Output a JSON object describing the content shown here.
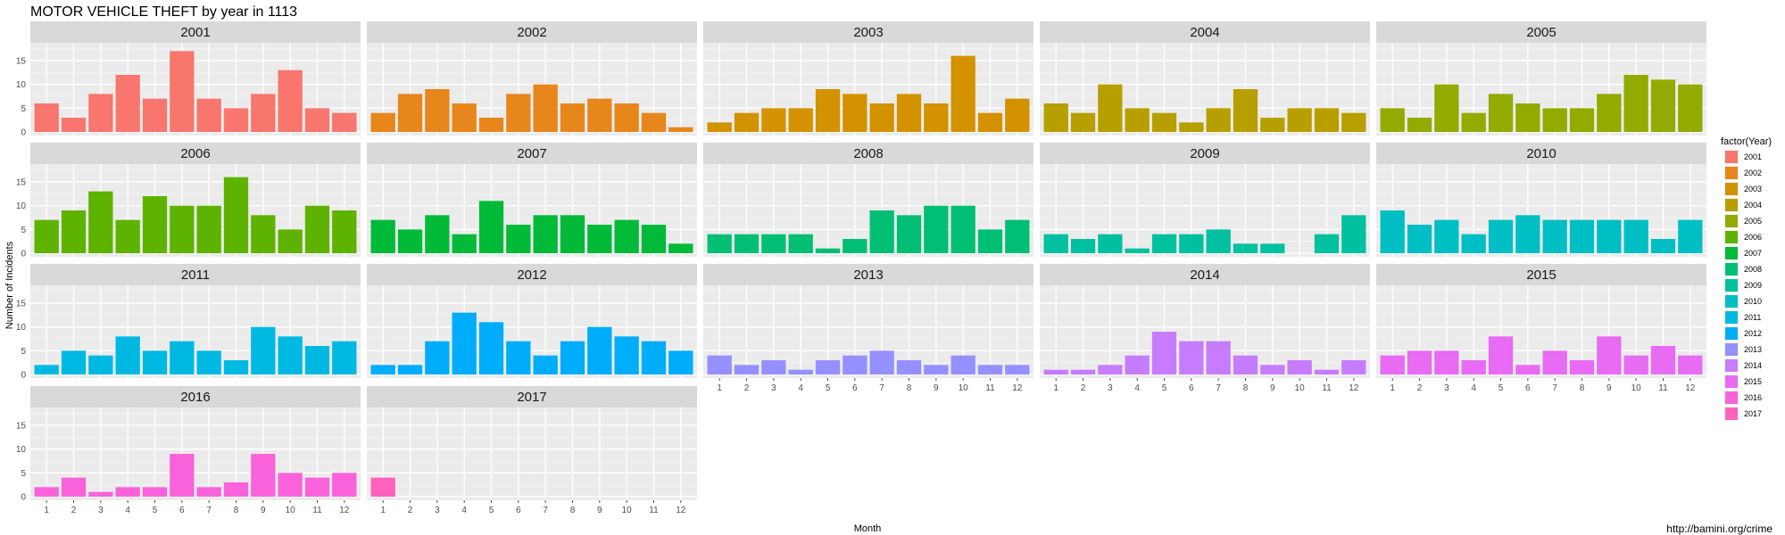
{
  "chart_data": {
    "type": "bar",
    "title": "MOTOR VEHICLE THEFT by year in 1113",
    "xlabel": "Month",
    "ylabel": "Number of Incidents",
    "ylim": [
      0,
      18
    ],
    "y_ticks": [
      0,
      5,
      10,
      15
    ],
    "categories": [
      "1",
      "2",
      "3",
      "4",
      "5",
      "6",
      "7",
      "8",
      "9",
      "10",
      "11",
      "12"
    ],
    "legend_title": "factor(Year)",
    "legend_position": "right",
    "grid": true,
    "series": [
      {
        "name": "2001",
        "color": "#F8766D",
        "values": [
          6,
          3,
          8,
          12,
          7,
          17,
          7,
          5,
          8,
          13,
          5,
          4
        ]
      },
      {
        "name": "2002",
        "color": "#E7861B",
        "values": [
          4,
          8,
          9,
          6,
          3,
          8,
          10,
          6,
          7,
          6,
          4,
          1
        ]
      },
      {
        "name": "2003",
        "color": "#D39200",
        "values": [
          2,
          4,
          5,
          5,
          9,
          8,
          6,
          8,
          6,
          16,
          4,
          7
        ]
      },
      {
        "name": "2004",
        "color": "#B79F00",
        "values": [
          6,
          4,
          10,
          5,
          4,
          2,
          5,
          9,
          3,
          5,
          5,
          4
        ]
      },
      {
        "name": "2005",
        "color": "#93AA00",
        "values": [
          5,
          3,
          10,
          4,
          8,
          6,
          5,
          5,
          8,
          12,
          11,
          10
        ]
      },
      {
        "name": "2006",
        "color": "#5EB300",
        "values": [
          7,
          9,
          13,
          7,
          12,
          10,
          10,
          16,
          8,
          5,
          10,
          9
        ]
      },
      {
        "name": "2007",
        "color": "#00BA38",
        "values": [
          7,
          5,
          8,
          4,
          11,
          6,
          8,
          8,
          6,
          7,
          6,
          2
        ]
      },
      {
        "name": "2008",
        "color": "#00BF74",
        "values": [
          4,
          4,
          4,
          4,
          1,
          3,
          9,
          8,
          10,
          10,
          5,
          7
        ]
      },
      {
        "name": "2009",
        "color": "#00C19F",
        "values": [
          4,
          3,
          4,
          1,
          4,
          4,
          5,
          2,
          2,
          0,
          4,
          8
        ]
      },
      {
        "name": "2010",
        "color": "#00BFC4",
        "values": [
          9,
          6,
          7,
          4,
          7,
          8,
          7,
          7,
          7,
          7,
          3,
          7
        ]
      },
      {
        "name": "2011",
        "color": "#00B9E3",
        "values": [
          2,
          5,
          4,
          8,
          5,
          7,
          5,
          3,
          10,
          8,
          6,
          7
        ]
      },
      {
        "name": "2012",
        "color": "#00ADFA",
        "values": [
          2,
          2,
          7,
          13,
          11,
          7,
          4,
          7,
          10,
          8,
          7,
          5
        ]
      },
      {
        "name": "2013",
        "color": "#9590FF",
        "values": [
          4,
          2,
          3,
          1,
          3,
          4,
          5,
          3,
          2,
          4,
          2,
          2
        ]
      },
      {
        "name": "2014",
        "color": "#C77CFF",
        "values": [
          1,
          1,
          2,
          4,
          9,
          7,
          7,
          4,
          2,
          3,
          1,
          3
        ]
      },
      {
        "name": "2015",
        "color": "#E76BF3",
        "values": [
          4,
          5,
          5,
          3,
          8,
          2,
          5,
          3,
          8,
          4,
          6,
          4
        ]
      },
      {
        "name": "2016",
        "color": "#FA62DB",
        "values": [
          2,
          4,
          1,
          2,
          2,
          9,
          2,
          3,
          9,
          5,
          4,
          5
        ]
      },
      {
        "name": "2017",
        "color": "#FF62BC",
        "values": [
          4,
          0,
          0,
          0,
          0,
          0,
          0,
          0,
          0,
          0,
          0,
          0
        ]
      }
    ],
    "source_text": "http://bamini.org/crime"
  }
}
